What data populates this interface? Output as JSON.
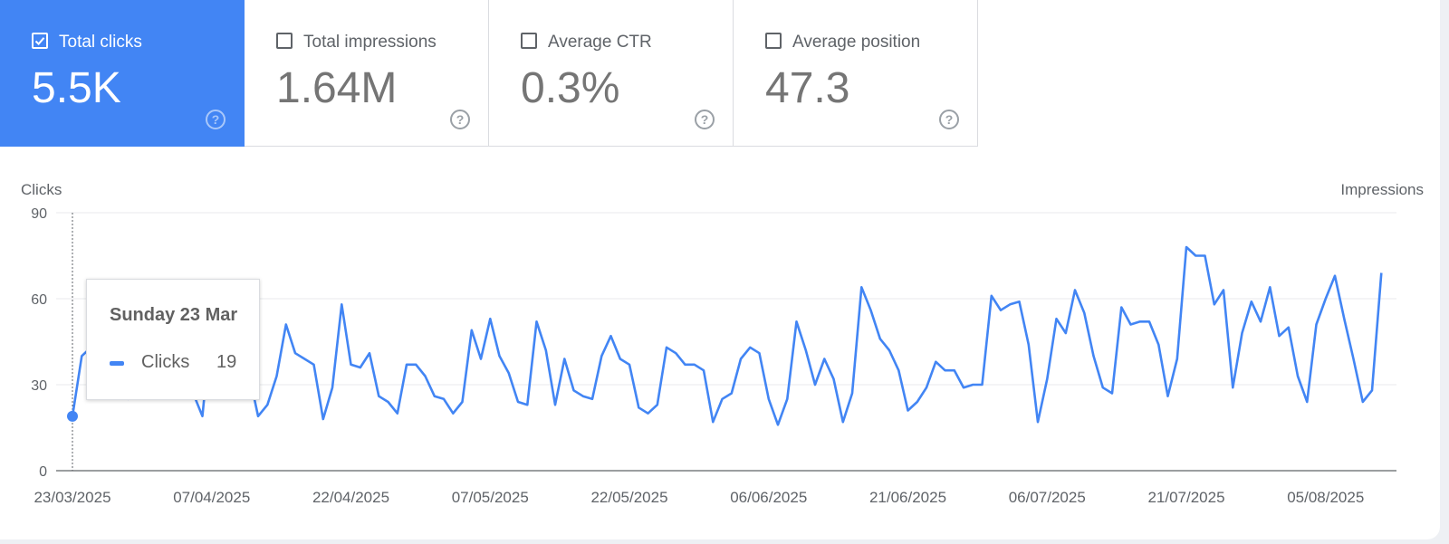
{
  "metrics": [
    {
      "label": "Total clicks",
      "value": "5.5K",
      "checked": true
    },
    {
      "label": "Total impressions",
      "value": "1.64M",
      "checked": false
    },
    {
      "label": "Average CTR",
      "value": "0.3%",
      "checked": false
    },
    {
      "label": "Average position",
      "value": "47.3",
      "checked": false
    }
  ],
  "help_glyph": "?",
  "tooltip": {
    "title": "Sunday 23 Mar",
    "series": "Clicks",
    "value": "19"
  },
  "colors": {
    "accent": "#4285f4",
    "grid": "#e8eaed",
    "axis": "#5f6368"
  },
  "chart_data": {
    "type": "line",
    "ylabel": "Clicks",
    "y2label": "Impressions",
    "ylim": [
      0,
      90
    ],
    "yticks": [
      0,
      30,
      60,
      90
    ],
    "xlim": [
      "2025-03-23",
      "2025-08-15"
    ],
    "xticks": [
      "23/03/2025",
      "07/04/2025",
      "22/04/2025",
      "07/05/2025",
      "22/05/2025",
      "06/06/2025",
      "21/06/2025",
      "06/07/2025",
      "21/07/2025",
      "05/08/2025"
    ],
    "grid": true,
    "highlight": {
      "date": "2025-03-23",
      "value": 19
    },
    "series": [
      {
        "name": "Clicks",
        "color": "#4285f4",
        "start_date": "2025-03-23",
        "values": [
          19,
          40,
          43,
          45,
          44,
          26,
          25,
          37,
          50,
          46,
          51,
          31,
          34,
          27,
          19,
          52,
          40,
          30,
          35,
          34,
          19,
          23,
          33,
          51,
          41,
          39,
          37,
          18,
          29,
          58,
          37,
          36,
          41,
          26,
          24,
          20,
          37,
          37,
          33,
          26,
          25,
          20,
          24,
          49,
          39,
          53,
          40,
          34,
          24,
          23,
          52,
          42,
          23,
          39,
          28,
          26,
          25,
          40,
          47,
          39,
          37,
          22,
          20,
          23,
          43,
          41,
          37,
          37,
          35,
          17,
          25,
          27,
          39,
          43,
          41,
          25,
          16,
          25,
          52,
          42,
          30,
          39,
          32,
          17,
          27,
          64,
          56,
          46,
          42,
          35,
          21,
          24,
          29,
          38,
          35,
          35,
          29,
          30,
          30,
          61,
          56,
          58,
          59,
          44,
          17,
          32,
          53,
          48,
          63,
          55,
          40,
          29,
          27,
          57,
          51,
          52,
          52,
          44,
          26,
          39,
          78,
          75,
          75,
          58,
          63,
          29,
          48,
          59,
          52,
          64,
          47,
          50,
          33,
          24,
          51,
          60,
          68,
          53,
          39,
          24,
          28,
          69
        ]
      }
    ]
  }
}
